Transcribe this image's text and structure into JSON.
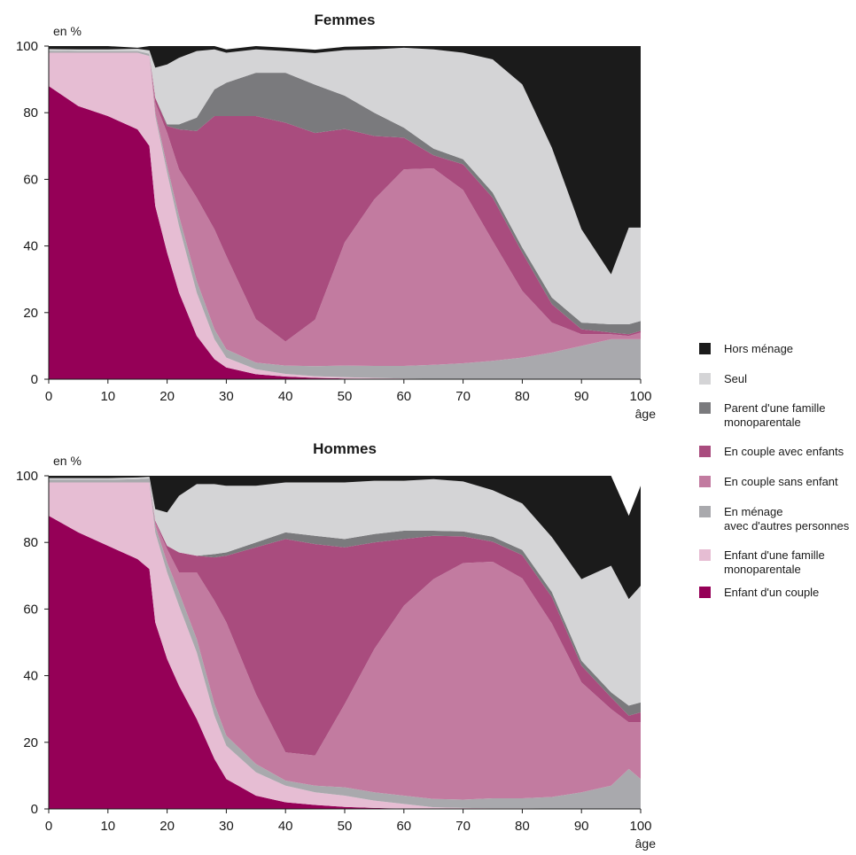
{
  "chart_data": [
    {
      "type": "area",
      "stacked": true,
      "title": "Femmes",
      "ylabel": "en %",
      "xlabel": "âge",
      "xlim": [
        0,
        100
      ],
      "ylim": [
        0,
        100
      ],
      "xticks": [
        "0",
        "10",
        "20",
        "30",
        "40",
        "50",
        "60",
        "70",
        "80",
        "90",
        "100"
      ],
      "yticks": [
        "0",
        "20",
        "40",
        "60",
        "80",
        "100"
      ],
      "x": [
        0,
        5,
        10,
        15,
        17,
        18,
        20,
        22,
        25,
        28,
        30,
        35,
        40,
        45,
        50,
        55,
        60,
        65,
        70,
        75,
        80,
        85,
        90,
        95,
        98,
        100
      ],
      "series": [
        {
          "name": "Enfant d'un couple",
          "values": [
            88,
            82,
            79,
            75,
            70,
            52,
            38,
            26,
            13,
            6,
            3.5,
            1.5,
            0.8,
            0.4,
            0.2,
            0.1,
            0,
            0,
            0,
            0,
            0,
            0,
            0,
            0,
            0,
            0
          ]
        },
        {
          "name": "Enfant d'une famille monoparentale",
          "values": [
            10,
            16,
            19,
            23,
            27,
            27,
            24,
            20,
            13,
            6,
            3,
            1.5,
            0.8,
            0.5,
            0.4,
            0.3,
            0.2,
            0.1,
            0,
            0,
            0,
            0,
            0,
            0,
            0,
            0
          ]
        },
        {
          "name": "En ménage avec d'autres personnes",
          "values": [
            0.6,
            0.5,
            0.5,
            0.5,
            0.7,
            1,
            2,
            3,
            3.5,
            3,
            2.5,
            2,
            2.5,
            3,
            3.5,
            3.6,
            3.8,
            4.2,
            4.8,
            5.5,
            6.5,
            8,
            10,
            12,
            12,
            12
          ]
        },
        {
          "name": "En couple sans enfant",
          "values": [
            0,
            0,
            0,
            0,
            0,
            3,
            10,
            14,
            25,
            30,
            28,
            13,
            7.2,
            14,
            37,
            50,
            59,
            59,
            52,
            36,
            20,
            9,
            3.5,
            1.5,
            1,
            2
          ]
        },
        {
          "name": "En couple avec enfants",
          "values": [
            0,
            0,
            0,
            0,
            0,
            1.5,
            2,
            12,
            20,
            34,
            42,
            61,
            65.7,
            56,
            34,
            19,
            9.5,
            3.9,
            7.7,
            13,
            11.5,
            5.5,
            1.5,
            0.5,
            0.5,
            0.5
          ]
        },
        {
          "name": "Parent d'une famille monoparentale",
          "values": [
            0,
            0,
            0,
            0,
            0,
            0,
            0.5,
            1.5,
            4,
            8,
            10,
            13,
            15,
            14.5,
            10,
            7,
            3,
            2,
            1.5,
            1.5,
            1.5,
            2,
            2,
            2.5,
            3,
            3
          ]
        },
        {
          "name": "Seul",
          "values": [
            0.5,
            0.5,
            0.5,
            0.7,
            1,
            9,
            18,
            20,
            20,
            12,
            9,
            7,
            6.5,
            9.5,
            13.7,
            19,
            24,
            29.8,
            32,
            40,
            49,
            45,
            28,
            15,
            29,
            28
          ]
        },
        {
          "name": "Hors ménage",
          "values": [
            0.9,
            1,
            1,
            0.3,
            1.3,
            7.5,
            5.5,
            3.5,
            1.5,
            1,
            1,
            1,
            1,
            1,
            1,
            1,
            0.5,
            1,
            2,
            4,
            11.5,
            30.5,
            55,
            68.5,
            54.5,
            54.5
          ]
        }
      ]
    },
    {
      "type": "area",
      "stacked": true,
      "title": "Hommes",
      "ylabel": "en %",
      "xlabel": "âge",
      "xlim": [
        0,
        100
      ],
      "ylim": [
        0,
        100
      ],
      "xticks": [
        "0",
        "10",
        "20",
        "30",
        "40",
        "50",
        "60",
        "70",
        "80",
        "90",
        "100"
      ],
      "yticks": [
        "0",
        "20",
        "40",
        "60",
        "80",
        "100"
      ],
      "x": [
        0,
        5,
        10,
        15,
        17,
        18,
        20,
        22,
        25,
        28,
        30,
        35,
        40,
        45,
        50,
        55,
        60,
        65,
        70,
        75,
        80,
        85,
        90,
        95,
        98,
        100
      ],
      "series": [
        {
          "name": "Enfant d'un couple",
          "values": [
            88,
            83,
            79,
            75,
            72,
            56,
            45,
            37,
            27,
            15,
            9,
            4,
            2,
            1.2,
            0.6,
            0.3,
            0.1,
            0,
            0,
            0,
            0,
            0,
            0,
            0,
            0,
            0
          ]
        },
        {
          "name": "Enfant d'une famille monoparentale",
          "values": [
            10,
            15,
            19,
            23,
            26,
            27,
            26,
            24,
            20,
            13,
            10,
            7,
            5,
            3.8,
            3.4,
            2.2,
            1.4,
            0.5,
            0.3,
            0.2,
            0.2,
            0.1,
            0,
            0,
            0,
            0
          ]
        },
        {
          "name": "En ménage avec d'autres personnes",
          "values": [
            0.8,
            0.8,
            0.8,
            1,
            1.2,
            2,
            3,
            4,
            4,
            3.5,
            3,
            2.5,
            1.5,
            2,
            2.5,
            2.5,
            2.5,
            2.5,
            2.5,
            3,
            3,
            3.5,
            5,
            7,
            12,
            9
          ]
        },
        {
          "name": "En couple sans enfant",
          "values": [
            0,
            0,
            0,
            0,
            0,
            1,
            4,
            6,
            20,
            31,
            34,
            21,
            8.5,
            9,
            25,
            43,
            57,
            66,
            71,
            71,
            66,
            52,
            33,
            23,
            14,
            17
          ]
        },
        {
          "name": "En couple avec enfants",
          "values": [
            0,
            0,
            0,
            0,
            0,
            0.5,
            1,
            6,
            5,
            13,
            20,
            44,
            64,
            63.5,
            47,
            32,
            20,
            13,
            8,
            6,
            7,
            8,
            5,
            3.5,
            2,
            3
          ]
        },
        {
          "name": "Parent d'une famille monoparentale",
          "values": [
            0,
            0,
            0,
            0,
            0,
            0,
            0,
            0,
            0,
            1,
            1,
            1.5,
            2,
            2.5,
            2.5,
            2.5,
            2.5,
            1.5,
            1.5,
            1.5,
            1.5,
            1.5,
            1.5,
            1.5,
            3,
            3
          ]
        },
        {
          "name": "Seul",
          "values": [
            0.5,
            0.5,
            0.5,
            0.5,
            0.5,
            3.5,
            10,
            17,
            21.5,
            21,
            20,
            17,
            15,
            16,
            17,
            16,
            15,
            15.5,
            15,
            14,
            14,
            16.5,
            24.5,
            38,
            32,
            35
          ]
        },
        {
          "name": "Hors ménage",
          "values": [
            0.7,
            0.7,
            0.7,
            0.5,
            0.3,
            10,
            11,
            6,
            2.5,
            2.5,
            3,
            3,
            2,
            2,
            2,
            1.5,
            1.5,
            1,
            1.7,
            4.3,
            8.3,
            18.4,
            31,
            27,
            25,
            30
          ]
        }
      ]
    }
  ],
  "legend": {
    "items": [
      {
        "label": "Hors ménage",
        "color": "#1b1b1b"
      },
      {
        "label": "Seul",
        "color": "#d4d4d6"
      },
      {
        "label": "Parent d'une famille\nmonoparentale",
        "color": "#7a7a7d"
      },
      {
        "label": "En couple avec enfants",
        "color": "#a94c7e"
      },
      {
        "label": "En couple sans enfant",
        "color": "#c27ba0"
      },
      {
        "label": "En ménage\navec d'autres personnes",
        "color": "#a9a9ad"
      },
      {
        "label": "Enfant d'une famille\nmonoparentale",
        "color": "#e6bdd3"
      },
      {
        "label": "Enfant d'un couple",
        "color": "#950057"
      }
    ]
  },
  "colors": {
    "Enfant d'un couple": "#950057",
    "Enfant d'une famille monoparentale": "#e6bdd3",
    "En ménage avec d'autres personnes": "#a9a9ad",
    "En couple sans enfant": "#c27ba0",
    "En couple avec enfants": "#a94c7e",
    "Parent d'une famille monoparentale": "#7a7a7d",
    "Seul": "#d4d4d6",
    "Hors ménage": "#1b1b1b"
  }
}
